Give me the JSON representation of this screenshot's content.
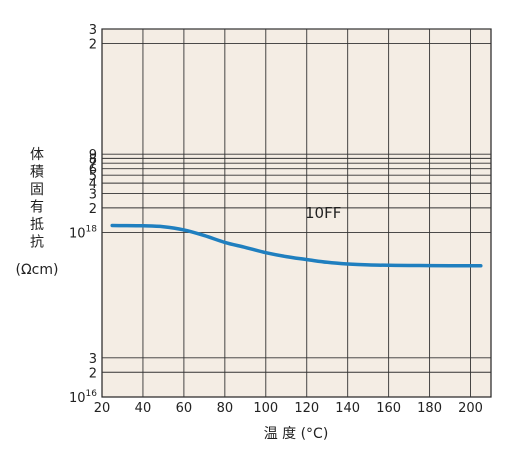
{
  "chart_data": {
    "type": "line",
    "x_ticks": [
      20,
      40,
      60,
      80,
      100,
      120,
      140,
      160,
      180,
      200
    ],
    "y_ticks": [
      {
        "value": 1e+16,
        "base": "10",
        "exp": "16"
      },
      {
        "value": 2e+16,
        "label": "2"
      },
      {
        "value": 3e+16,
        "label": "3"
      },
      {
        "value": 1e+18,
        "base": "10",
        "exp": "18"
      },
      {
        "value": 2e+18,
        "label": "2"
      },
      {
        "value": 3e+18,
        "label": "3"
      },
      {
        "value": 4e+18,
        "label": "4"
      },
      {
        "value": 5e+18,
        "label": "5"
      },
      {
        "value": 6e+18,
        "label": "6"
      },
      {
        "value": 7e+18,
        "label": "7"
      },
      {
        "value": 8e+18,
        "label": "8"
      },
      {
        "value": 9e+18,
        "label": "9"
      },
      {
        "value": 2e+20,
        "label": "2"
      },
      {
        "value": 3e+20,
        "label": "3"
      }
    ],
    "ylabel_chars": [
      "体",
      "積",
      "固",
      "有",
      "抵",
      "抗"
    ],
    "yunit": "(Ωcm)",
    "xlabel": "温 度 (°C)",
    "xlim": [
      20,
      210
    ],
    "series": [
      {
        "name": "10FF",
        "color": "#1f7fbf",
        "x": [
          25,
          40,
          50,
          60,
          70,
          80,
          90,
          100,
          110,
          120,
          130,
          140,
          150,
          160,
          170,
          180,
          190,
          200,
          205
        ],
        "y": [
          1.22e+18,
          1.21e+18,
          1.18e+18,
          1.08e+18,
          9.2e+17,
          7.6e+17,
          6.6e+17,
          5.7e+17,
          5.1e+17,
          4.7e+17,
          4.35e+17,
          4.15e+17,
          4.05e+17,
          4e+17,
          3.98e+17,
          3.97e+17,
          3.96e+17,
          3.95e+17,
          3.95e+17
        ]
      }
    ]
  }
}
